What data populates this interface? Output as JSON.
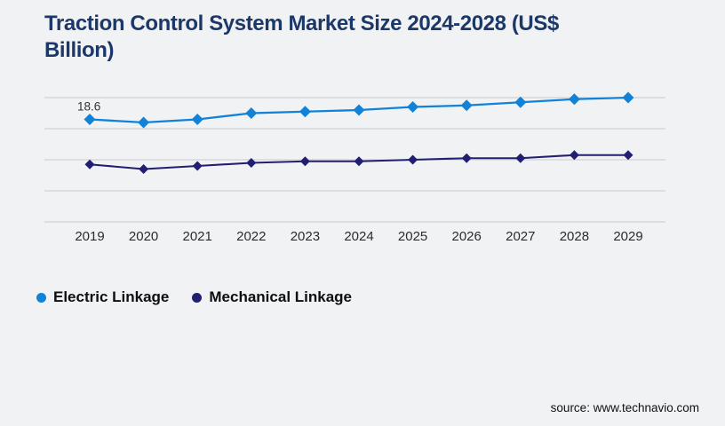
{
  "page": {
    "background_color": "#f1f2f4"
  },
  "chart_data": {
    "type": "line",
    "title": "Traction Control System Market Size 2024-2028 (US$ Billion)",
    "title_color": "#1c3869",
    "xlabel": "",
    "ylabel": "",
    "categories": [
      "2019",
      "2020",
      "2021",
      "2022",
      "2023",
      "2024",
      "2025",
      "2026",
      "2027",
      "2028",
      "2029"
    ],
    "series": [
      {
        "name": "Electric Linkage",
        "color": "#1182d5",
        "marker": "diamond",
        "values": [
          18.6,
          18.4,
          18.6,
          19.0,
          19.1,
          19.2,
          19.4,
          19.5,
          19.7,
          19.9,
          20.0
        ]
      },
      {
        "name": "Mechanical Linkage",
        "color": "#221f72",
        "marker": "diamond",
        "values": [
          15.7,
          15.4,
          15.6,
          15.8,
          15.9,
          15.9,
          16.0,
          16.1,
          16.1,
          16.3,
          16.3
        ]
      }
    ],
    "ylim": [
      12,
      20
    ],
    "y_gridline_step": 2,
    "grid": "horizontal",
    "gridline_color": "#c9cacd",
    "tick_label_color": "#2b2b2b",
    "legend_position": "bottom-left",
    "annotation": {
      "series": "Electric Linkage",
      "category": "2019",
      "text": "18.6",
      "color": "#333333"
    }
  },
  "source": {
    "label": "source: www.technavio.com"
  }
}
